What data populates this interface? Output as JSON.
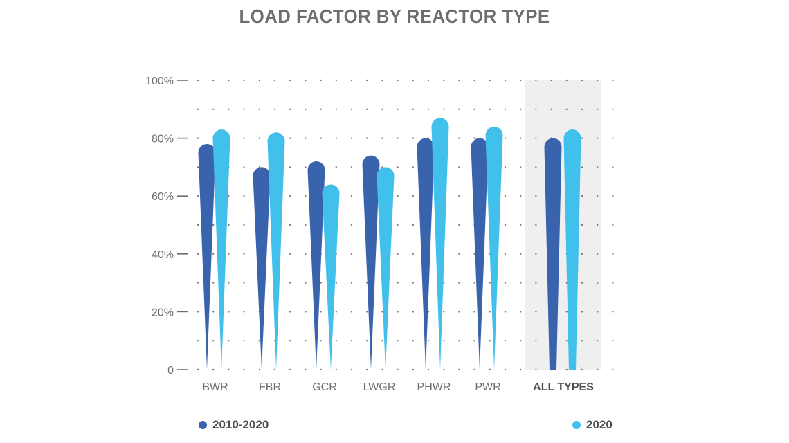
{
  "chart_data": {
    "type": "bar",
    "title": "LOAD FACTOR BY REACTOR TYPE",
    "categories": [
      "BWR",
      "FBR",
      "GCR",
      "LWGR",
      "PHWR",
      "PWR",
      "ALL TYPES"
    ],
    "series": [
      {
        "name": "2010-2020",
        "color": "#3a63ad",
        "values": [
          78,
          70,
          72,
          74,
          80,
          80,
          80
        ]
      },
      {
        "name": "2020",
        "color": "#41c0eb",
        "values": [
          83,
          82,
          64,
          70,
          87,
          84,
          83
        ]
      }
    ],
    "yticks": [
      "0",
      "20%",
      "40%",
      "60%",
      "80%",
      "100%"
    ],
    "ylim": [
      0,
      100
    ],
    "grid": "dotted",
    "highlight_category": "ALL TYPES",
    "legend_position": "bottom"
  }
}
